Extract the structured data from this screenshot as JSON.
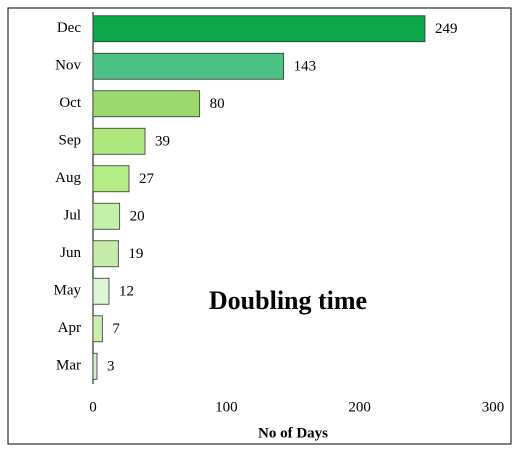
{
  "chart_data": {
    "type": "hbar",
    "annotation": "Doubling time",
    "xlabel": "No of Days",
    "categories": [
      "Dec",
      "Nov",
      "Oct",
      "Sep",
      "Aug",
      "Jul",
      "Jun",
      "May",
      "Apr",
      "Mar"
    ],
    "values": [
      249,
      143,
      80,
      39,
      27,
      20,
      19,
      12,
      7,
      3
    ],
    "colors": [
      "#0aa84a",
      "#4cc184",
      "#9cd96c",
      "#aee87c",
      "#b4ec86",
      "#c3f0a9",
      "#c6eba9",
      "#dcf6d6",
      "#cdeeb1",
      "#d8f0c9"
    ],
    "xlim": [
      0,
      300
    ],
    "xticks": [
      0,
      100,
      200,
      300
    ]
  }
}
